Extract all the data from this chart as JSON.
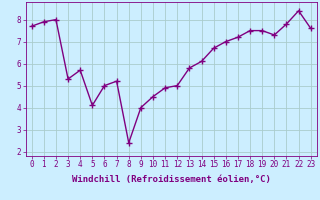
{
  "x": [
    0,
    1,
    2,
    3,
    4,
    5,
    6,
    7,
    8,
    9,
    10,
    11,
    12,
    13,
    14,
    15,
    16,
    17,
    18,
    19,
    20,
    21,
    22,
    23
  ],
  "y": [
    7.7,
    7.9,
    8.0,
    5.3,
    5.7,
    4.1,
    5.0,
    5.2,
    2.4,
    4.0,
    4.5,
    4.9,
    5.0,
    5.8,
    6.1,
    6.7,
    7.0,
    7.2,
    7.5,
    7.5,
    7.3,
    7.8,
    8.4,
    7.6
  ],
  "line_color": "#800080",
  "marker": "+",
  "marker_size": 4,
  "bg_color": "#cceeff",
  "grid_color": "#aacccc",
  "xlabel": "Windchill (Refroidissement éolien,°C)",
  "xlabel_color": "#800080",
  "xlim": [
    -0.5,
    23.5
  ],
  "ylim": [
    1.8,
    8.8
  ],
  "yticks": [
    2,
    3,
    4,
    5,
    6,
    7,
    8
  ],
  "xticks": [
    0,
    1,
    2,
    3,
    4,
    5,
    6,
    7,
    8,
    9,
    10,
    11,
    12,
    13,
    14,
    15,
    16,
    17,
    18,
    19,
    20,
    21,
    22,
    23
  ],
  "tick_color": "#800080",
  "tick_label_fontsize": 5.5,
  "xlabel_fontsize": 6.5,
  "line_width": 1.0
}
